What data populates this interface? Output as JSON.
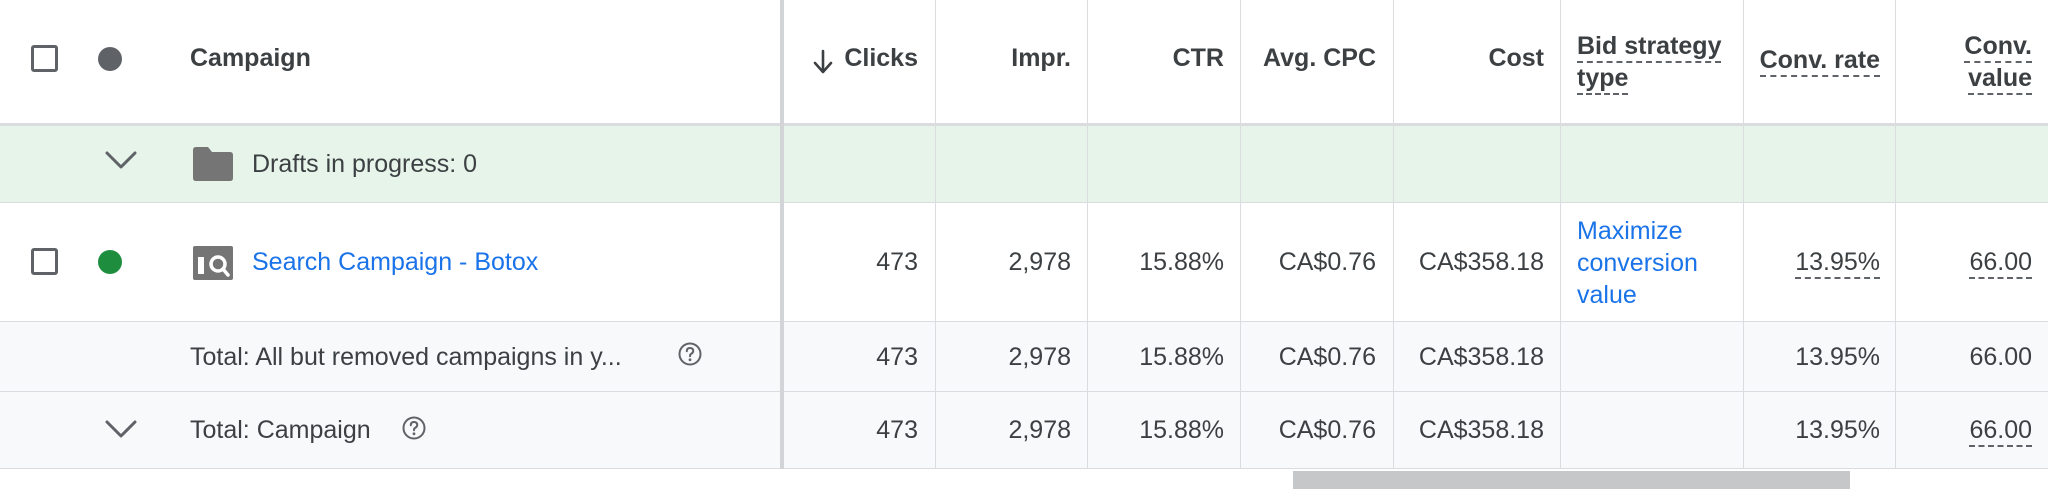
{
  "header": {
    "campaign": "Campaign",
    "clicks": "Clicks",
    "impr": "Impr.",
    "ctr": "CTR",
    "avg_cpc": "Avg. CPC",
    "cost": "Cost",
    "bid_strategy_line1": "Bid strategy",
    "bid_strategy_line2": "type",
    "conv_rate": "Conv. rate",
    "conv_value_line1": "Conv.",
    "conv_value_line2": "value",
    "sort_icon": "arrow-down-icon"
  },
  "drafts_row": {
    "label": "Drafts in progress: 0",
    "icon": "folder-icon",
    "expand_icon": "chevron-down-icon"
  },
  "campaign_row": {
    "name": "Search Campaign - Botox",
    "status_color": "#1e8e3e",
    "type_icon": "search-campaign-icon",
    "clicks": "473",
    "impr": "2,978",
    "ctr": "15.88%",
    "avg_cpc": "CA$0.76",
    "cost": "CA$358.18",
    "bid_strategy_line1": "Maximize",
    "bid_strategy_line2": "conversion",
    "bid_strategy_line3": "value",
    "conv_rate": "13.95%",
    "conv_value": "66.00"
  },
  "total_filtered_row": {
    "label": "Total: All but removed campaigns in y...",
    "clicks": "473",
    "impr": "2,978",
    "ctr": "15.88%",
    "avg_cpc": "CA$0.76",
    "cost": "CA$358.18",
    "conv_rate": "13.95%",
    "conv_value": "66.00"
  },
  "total_campaign_row": {
    "label": "Total: Campaign",
    "clicks": "473",
    "impr": "2,978",
    "ctr": "15.88%",
    "avg_cpc": "CA$0.76",
    "cost": "CA$358.18",
    "conv_rate": "13.95%",
    "conv_value": "66.00"
  },
  "colors": {
    "header_status_dot": "#5f6368",
    "enabled_status_dot": "#1e8e3e",
    "link": "#1a73e8",
    "drafts_bg": "#e6f4ea"
  }
}
